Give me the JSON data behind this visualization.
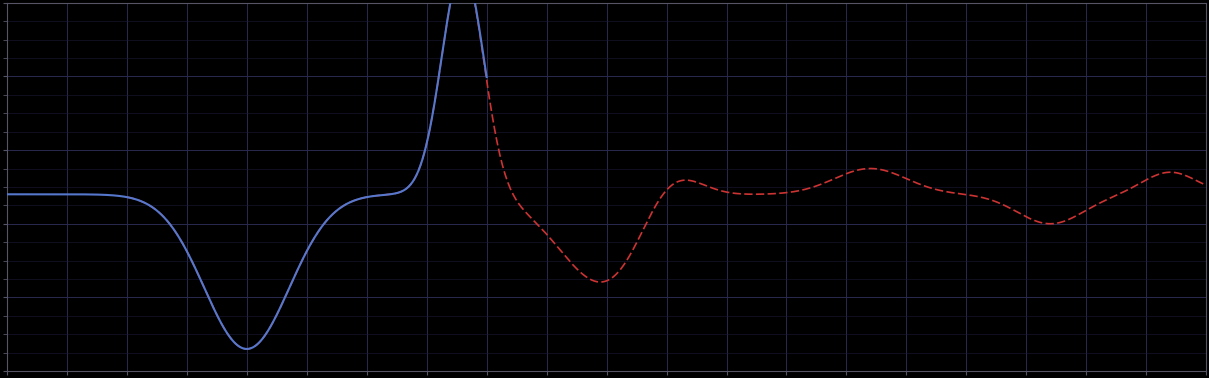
{
  "background_color": "#000000",
  "plot_bg_color": "#000000",
  "blue_line_color": "#5577cc",
  "red_line_color": "#cc3333",
  "figsize": [
    12.09,
    3.78
  ],
  "dpi": 100,
  "xlim": [
    0,
    100
  ],
  "ylim": [
    0,
    100
  ],
  "grid_major_color": "#2a2a50",
  "grid_minor_color": "#1a1a38",
  "spine_color": "#555566"
}
